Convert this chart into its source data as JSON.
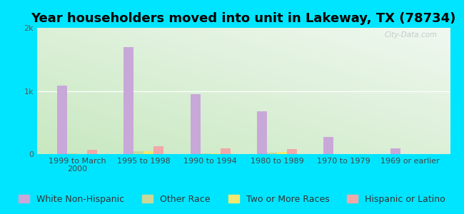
{
  "title": "Year householders moved into unit in Lakeway, TX (78734)",
  "categories": [
    "1999 to March\n2000",
    "1995 to 1998",
    "1990 to 1994",
    "1980 to 1989",
    "1970 to 1979",
    "1969 or earlier"
  ],
  "series": {
    "White Non-Hispanic": [
      1080,
      1700,
      950,
      680,
      270,
      90
    ],
    "Other Race": [
      8,
      40,
      15,
      20,
      0,
      0
    ],
    "Two or More Races": [
      4,
      40,
      12,
      35,
      0,
      0
    ],
    "Hispanic or Latino": [
      70,
      120,
      90,
      80,
      0,
      0
    ]
  },
  "colors": {
    "White Non-Hispanic": "#c8a8d8",
    "Other Race": "#c8d898",
    "Two or More Races": "#f0e870",
    "Hispanic or Latino": "#f0a8a8"
  },
  "bar_width": 0.15,
  "ylim": [
    0,
    2000
  ],
  "yticks": [
    0,
    1000,
    2000
  ],
  "ytick_labels": [
    "0",
    "1k",
    "2k"
  ],
  "outer_background": "#00e5ff",
  "title_fontsize": 13,
  "legend_fontsize": 9,
  "tick_fontsize": 8,
  "watermark": "City-Data.com"
}
